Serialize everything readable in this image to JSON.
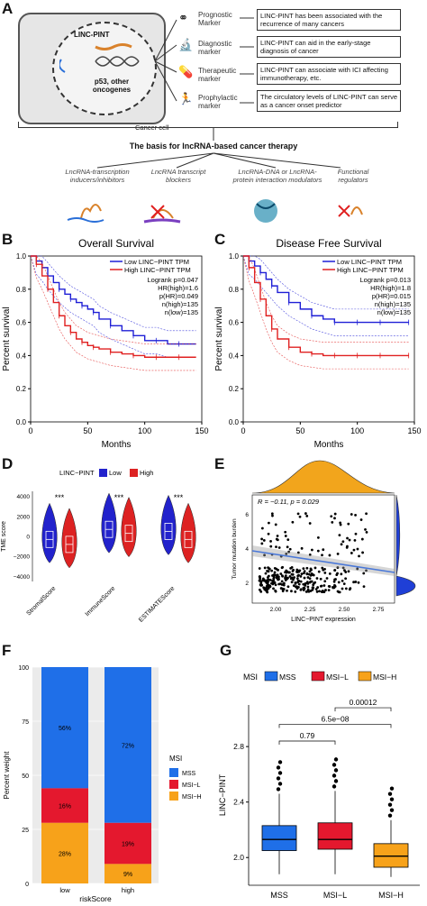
{
  "panels": {
    "A": "A",
    "B": "B",
    "C": "C",
    "D": "D",
    "E": "E",
    "F": "F",
    "G": "G"
  },
  "panelA": {
    "cell_label": "Cancer cell",
    "nucleus_gene": "LINC-PINT",
    "nucleus_text": "p53, other oncogenes",
    "markers": [
      {
        "name": "Prognostic Marker",
        "desc": "LINC-PINT has been associated with the recurrence of many cancers"
      },
      {
        "name": "Diagnostic marker",
        "desc": "LINC-PINT can aid in the early-stage diagnosis of cancer"
      },
      {
        "name": "Therapeutic marker",
        "desc": "LINC-PINT can associate with ICI affecting immunotherapy, etc."
      },
      {
        "name": "Prophylactic marker",
        "desc": "The circulatory levels of LINC-PINT can serve as a cancer onset predictor"
      }
    ],
    "basis_title": "The basis for lncRNA-based cancer therapy",
    "strategies": [
      "LncRNA-transcription inducers/inhibitors",
      "LncRNA transcript blockers",
      "LncRNA-DNA or LncRNA-protein interaction modulators",
      "Functional regulators"
    ]
  },
  "chart_data": [
    {
      "id": "B",
      "type": "line",
      "title": "Overall Survival",
      "xlabel": "Months",
      "ylabel": "Percent survival",
      "xlim": [
        0,
        150
      ],
      "ylim": [
        0,
        1
      ],
      "xticks": [
        "0",
        "50",
        "100",
        "150"
      ],
      "yticks": [
        "0.0",
        "0.2",
        "0.4",
        "0.6",
        "0.8",
        "1.0"
      ],
      "legend": [
        "Low LINC−PINT TPM",
        "High LINC−PINT TPM"
      ],
      "stats": [
        "Logrank p=0.047",
        "HR(high)=1.6",
        "p(HR)=0.049",
        "n(high)=135",
        "n(low)=135"
      ],
      "series": [
        {
          "name": "Low LINC−PINT TPM",
          "color": "#1f1fd6",
          "x": [
            0,
            5,
            10,
            15,
            20,
            25,
            30,
            35,
            40,
            45,
            50,
            55,
            60,
            70,
            80,
            90,
            100,
            110,
            120,
            130,
            145
          ],
          "y": [
            1.0,
            0.97,
            0.93,
            0.88,
            0.84,
            0.8,
            0.77,
            0.74,
            0.72,
            0.7,
            0.68,
            0.66,
            0.62,
            0.58,
            0.55,
            0.52,
            0.49,
            0.49,
            0.47,
            0.47,
            0.47
          ]
        },
        {
          "name": "High LINC−PINT TPM",
          "color": "#e02020",
          "x": [
            0,
            5,
            10,
            15,
            20,
            25,
            30,
            35,
            40,
            45,
            50,
            55,
            60,
            70,
            80,
            90,
            100,
            110,
            120,
            130,
            145
          ],
          "y": [
            1.0,
            0.95,
            0.88,
            0.8,
            0.72,
            0.64,
            0.58,
            0.54,
            0.5,
            0.48,
            0.46,
            0.45,
            0.44,
            0.42,
            0.41,
            0.4,
            0.39,
            0.39,
            0.39,
            0.39,
            0.39
          ]
        }
      ]
    },
    {
      "id": "C",
      "type": "line",
      "title": "Disease Free Survival",
      "xlabel": "Months",
      "ylabel": "Percent survival",
      "xlim": [
        0,
        150
      ],
      "ylim": [
        0,
        1
      ],
      "xticks": [
        "0",
        "50",
        "100",
        "150"
      ],
      "yticks": [
        "0.0",
        "0.2",
        "0.4",
        "0.6",
        "0.8",
        "1.0"
      ],
      "legend": [
        "Low LINC−PINT TPM",
        "High LINC−PINT TPM"
      ],
      "stats": [
        "Logrank p=0.013",
        "HR(high)=1.8",
        "p(HR)=0.015",
        "n(high)=135",
        "n(low)=135"
      ],
      "series": [
        {
          "name": "Low LINC−PINT TPM",
          "color": "#1f1fd6",
          "x": [
            0,
            5,
            10,
            15,
            20,
            25,
            30,
            40,
            50,
            60,
            70,
            80,
            90,
            100,
            110,
            120,
            130,
            145
          ],
          "y": [
            1.0,
            0.97,
            0.94,
            0.9,
            0.86,
            0.82,
            0.78,
            0.72,
            0.68,
            0.64,
            0.62,
            0.6,
            0.6,
            0.6,
            0.6,
            0.6,
            0.6,
            0.6
          ]
        },
        {
          "name": "High LINC−PINT TPM",
          "color": "#e02020",
          "x": [
            0,
            5,
            10,
            15,
            20,
            25,
            30,
            40,
            50,
            60,
            70,
            80,
            90,
            100,
            110,
            120,
            130,
            145
          ],
          "y": [
            1.0,
            0.93,
            0.84,
            0.74,
            0.64,
            0.56,
            0.5,
            0.45,
            0.42,
            0.41,
            0.4,
            0.4,
            0.4,
            0.4,
            0.4,
            0.4,
            0.4,
            0.4
          ]
        }
      ]
    },
    {
      "id": "D",
      "type": "box",
      "legend_title": "LINC−PINT",
      "legend": [
        "Low",
        "High"
      ],
      "ylabel": "TME score",
      "yticks": [
        "4000",
        "2000",
        "0",
        "−2000",
        "−4000"
      ],
      "categories": [
        "StromalScore",
        "ImmuneScore",
        "ESTIMATEScore"
      ],
      "significance": [
        "***",
        "***",
        "***"
      ],
      "series": [
        {
          "name": "Low",
          "color": "#2222cc",
          "medians": [
            -300,
            700,
            500
          ]
        },
        {
          "name": "High",
          "color": "#dd2222",
          "medians": [
            -800,
            300,
            -300
          ]
        }
      ]
    },
    {
      "id": "E",
      "type": "scatter",
      "xlabel": "LINC−PINT expression",
      "ylabel": "Tumor mutation burden",
      "xticks": [
        "2.00",
        "2.25",
        "2.50",
        "2.75"
      ],
      "yticks": [
        "2",
        "4",
        "6"
      ],
      "annotation": "R = −0.11, p = 0.029"
    },
    {
      "id": "F",
      "type": "bar",
      "ylabel": "Percent weight",
      "xlabel": "riskScore",
      "categories": [
        "low",
        "high"
      ],
      "yticks": [
        "0",
        "25",
        "50",
        "75",
        "100"
      ],
      "legend_title": "MSI",
      "series": [
        {
          "name": "MSS",
          "color": "#1f6fe8",
          "values": [
            56,
            72
          ]
        },
        {
          "name": "MSI−L",
          "color": "#e4182e",
          "values": [
            16,
            19
          ]
        },
        {
          "name": "MSI−H",
          "color": "#f7a21a",
          "values": [
            28,
            9
          ]
        }
      ],
      "labels": [
        [
          "56%",
          "16%",
          "28%"
        ],
        [
          "72%",
          "19%",
          "9%"
        ]
      ]
    },
    {
      "id": "G",
      "type": "box",
      "ylabel": "LINC−PINT",
      "legend_title": "MSI",
      "legend": [
        "MSS",
        "MSI−L",
        "MSI−H"
      ],
      "categories": [
        "MSS",
        "MSI−L",
        "MSI−H"
      ],
      "yticks": [
        "2.8",
        "2.4",
        "2.0"
      ],
      "pvalues": [
        "0.79",
        "6.5e−08",
        "0.00012"
      ],
      "series": [
        {
          "name": "MSS",
          "color": "#1f6fe8",
          "q1": 2.05,
          "median": 2.13,
          "q3": 2.23,
          "lo": 1.88,
          "hi": 2.46
        },
        {
          "name": "MSI−L",
          "color": "#e4182e",
          "q1": 2.06,
          "median": 2.13,
          "q3": 2.25,
          "lo": 1.88,
          "hi": 2.48
        },
        {
          "name": "MSI−H",
          "color": "#f7a21a",
          "q1": 1.93,
          "median": 2.01,
          "q3": 2.1,
          "lo": 1.86,
          "hi": 2.27
        }
      ]
    }
  ]
}
